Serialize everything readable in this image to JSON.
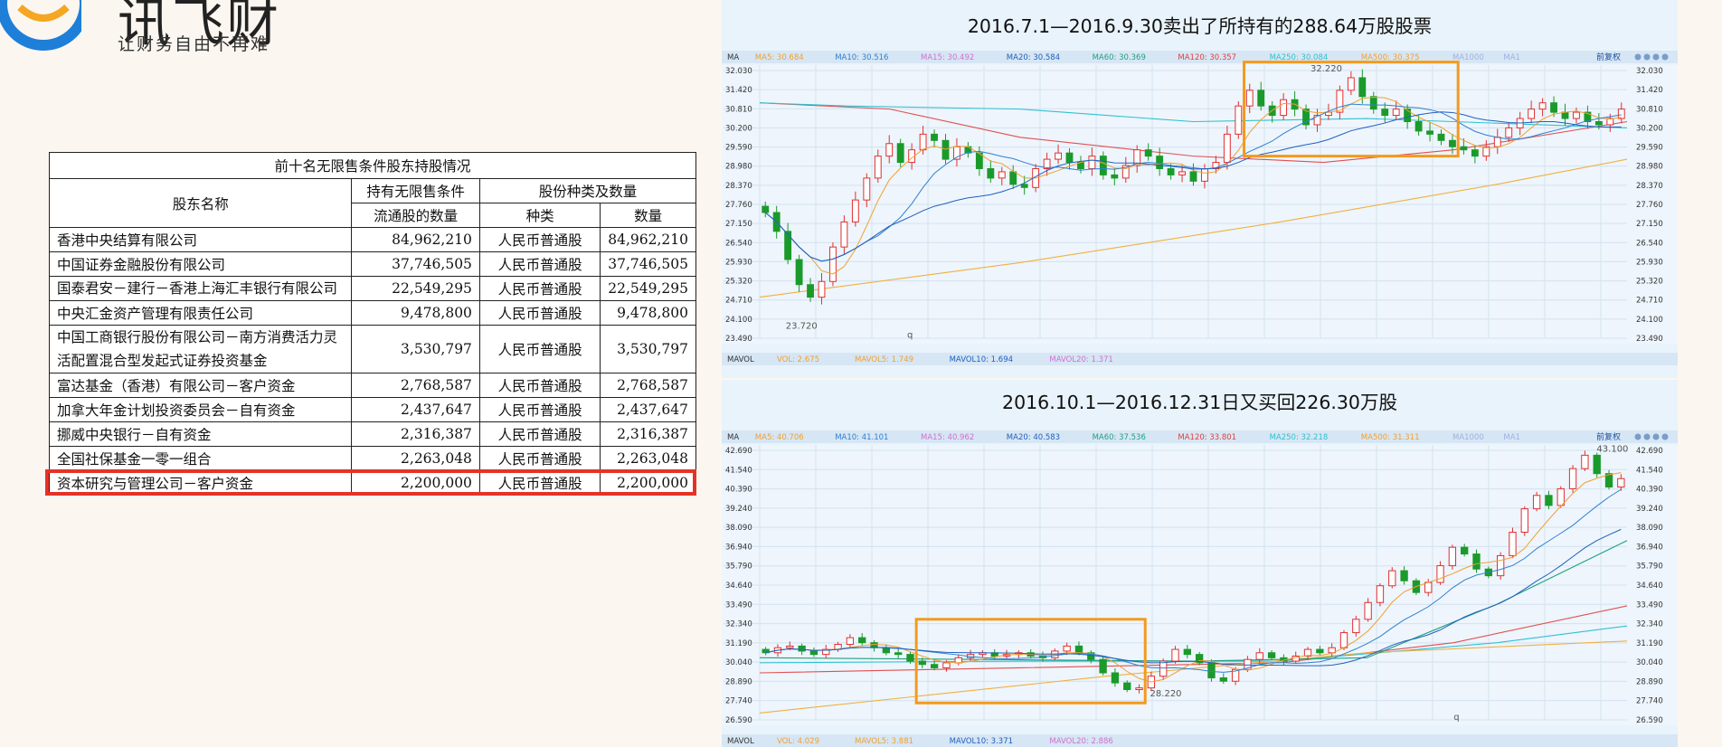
{
  "logo": {
    "text": "讯飞财",
    "slogan": "让财务自由不再难"
  },
  "table": {
    "caption": "前十名无限售条件股东持股情况",
    "col_name": "股东名称",
    "col_holdings": "持有无限售条件",
    "col_holdings2": "流通股的数量",
    "col_share": "股份种类及数量",
    "col_type": "种类",
    "col_qty": "数量",
    "rows": [
      {
        "name": "香港中央结算有限公司",
        "amount": "84,962,210",
        "type": "人民币普通股",
        "qty": "84,962,210"
      },
      {
        "name": "中国证券金融股份有限公司",
        "amount": "37,746,505",
        "type": "人民币普通股",
        "qty": "37,746,505"
      },
      {
        "name": "国泰君安－建行－香港上海汇丰银行有限公司",
        "amount": "22,549,295",
        "type": "人民币普通股",
        "qty": "22,549,295"
      },
      {
        "name": "中央汇金资产管理有限责任公司",
        "amount": "9,478,800",
        "type": "人民币普通股",
        "qty": "9,478,800"
      },
      {
        "name": "中国工商银行股份有限公司－南方消费活力灵活配置混合型发起式证券投资基金",
        "amount": "3,530,797",
        "type": "人民币普通股",
        "qty": "3,530,797"
      },
      {
        "name": "富达基金（香港）有限公司－客户资金",
        "amount": "2,768,587",
        "type": "人民币普通股",
        "qty": "2,768,587"
      },
      {
        "name": "加拿大年金计划投资委员会－自有资金",
        "amount": "2,437,647",
        "type": "人民币普通股",
        "qty": "2,437,647"
      },
      {
        "name": "挪威中央银行－自有资金",
        "amount": "2,316,387",
        "type": "人民币普通股",
        "qty": "2,316,387"
      },
      {
        "name": "全国社保基金一零一组合",
        "amount": "2,263,048",
        "type": "人民币普通股",
        "qty": "2,263,048"
      },
      {
        "name": "资本研究与管理公司－客户资金",
        "amount": "2,200,000",
        "type": "人民币普通股",
        "qty": "2,200,000"
      }
    ]
  },
  "colors": {
    "up": "#e03030",
    "down": "#1a9a2a",
    "highlight": "#e53227",
    "box": "#f39a1e"
  },
  "chart_data": [
    {
      "type": "candlestick",
      "title": "2016.7.1—2016.9.30卖出了所持有的288.64万股股票",
      "legend_ma": [
        {
          "label": "MA",
          "color": "#333333"
        },
        {
          "label": "MA5: 30.684",
          "color": "#f0a030"
        },
        {
          "label": "MA10: 30.516",
          "color": "#3080d0"
        },
        {
          "label": "MA15: 30.492",
          "color": "#d070d0"
        },
        {
          "label": "MA20: 30.584",
          "color": "#2060c0"
        },
        {
          "label": "MA60: 30.369",
          "color": "#20a080"
        },
        {
          "label": "MA120: 30.357",
          "color": "#e04040"
        },
        {
          "label": "MA250: 30.084",
          "color": "#30c0d0"
        },
        {
          "label": "MA500: 30.375",
          "color": "#f0a030"
        },
        {
          "label": "MA1000",
          "color": "#a0b0e0"
        },
        {
          "label": "MA1",
          "color": "#a0b0e0"
        }
      ],
      "button_label": "前复权",
      "y_ticks": [
        "32.030",
        "31.420",
        "30.810",
        "30.200",
        "29.590",
        "28.980",
        "28.370",
        "27.760",
        "27.150",
        "26.540",
        "25.930",
        "25.320",
        "24.710",
        "24.100",
        "23.490"
      ],
      "ylim": [
        23.49,
        32.03
      ],
      "annotations": [
        "32.220",
        "23.720",
        "q"
      ],
      "vol_legend": [
        {
          "label": "MAVOL",
          "color": "#333333"
        },
        {
          "label": "VOL: 2.675",
          "color": "#f0a030"
        },
        {
          "label": "MAVOL5: 1.749",
          "color": "#f0a030"
        },
        {
          "label": "MAVOL10: 1.694",
          "color": "#2060c0"
        },
        {
          "label": "MAVOL20: 1.371",
          "color": "#d070d0"
        }
      ],
      "close": [
        27.5,
        26.9,
        26.0,
        25.2,
        24.8,
        25.3,
        26.4,
        27.2,
        27.9,
        28.6,
        29.3,
        29.7,
        29.1,
        29.5,
        30.0,
        29.8,
        29.2,
        29.6,
        29.4,
        28.9,
        28.6,
        28.8,
        28.4,
        28.3,
        28.9,
        29.2,
        29.4,
        29.1,
        28.9,
        29.3,
        28.7,
        28.6,
        29.0,
        29.5,
        29.3,
        28.9,
        28.7,
        28.8,
        28.5,
        28.9,
        29.1,
        30.0,
        30.9,
        31.4,
        30.9,
        30.6,
        31.1,
        30.8,
        30.3,
        30.6,
        30.7,
        31.4,
        31.8,
        31.2,
        30.8,
        30.6,
        30.8,
        30.4,
        30.1,
        30.0,
        29.8,
        29.6,
        29.5,
        29.3,
        29.6,
        29.9,
        30.2,
        30.5,
        30.8,
        31.0,
        30.7,
        30.5,
        30.7,
        30.4,
        30.3,
        30.5,
        30.8
      ]
    },
    {
      "type": "candlestick",
      "title": "2016.10.1—2016.12.31日又买回226.30万股",
      "legend_ma": [
        {
          "label": "MA",
          "color": "#333333"
        },
        {
          "label": "MA5: 40.706",
          "color": "#f0a030"
        },
        {
          "label": "MA10: 41.101",
          "color": "#3080d0"
        },
        {
          "label": "MA15: 40.962",
          "color": "#d070d0"
        },
        {
          "label": "MA20: 40.583",
          "color": "#2060c0"
        },
        {
          "label": "MA60: 37.536",
          "color": "#20a080"
        },
        {
          "label": "MA120: 33.801",
          "color": "#e04040"
        },
        {
          "label": "MA250: 32.218",
          "color": "#30c0d0"
        },
        {
          "label": "MA500: 31.311",
          "color": "#f0a030"
        },
        {
          "label": "MA1000",
          "color": "#a0b0e0"
        },
        {
          "label": "MA1",
          "color": "#a0b0e0"
        }
      ],
      "button_label": "前复权",
      "y_ticks": [
        "42.690",
        "41.540",
        "40.390",
        "39.240",
        "38.090",
        "36.940",
        "35.790",
        "34.640",
        "33.490",
        "32.340",
        "31.190",
        "30.040",
        "28.890",
        "27.740",
        "26.590"
      ],
      "ylim": [
        26.59,
        42.69
      ],
      "annotations": [
        "43.100",
        "28.220",
        "q"
      ],
      "vol_legend": [
        {
          "label": "MAVOL",
          "color": "#333333"
        },
        {
          "label": "VOL: 4.029",
          "color": "#f0a030"
        },
        {
          "label": "MAVOL5: 3.881",
          "color": "#f0a030"
        },
        {
          "label": "MAVOL10: 3.371",
          "color": "#2060c0"
        },
        {
          "label": "MAVOL20: 2.886",
          "color": "#d070d0"
        }
      ],
      "close": [
        30.6,
        30.9,
        31.0,
        30.7,
        30.5,
        30.8,
        31.1,
        31.5,
        31.2,
        30.9,
        30.6,
        30.5,
        30.1,
        29.9,
        29.7,
        30.0,
        30.3,
        30.5,
        30.6,
        30.4,
        30.5,
        30.6,
        30.4,
        30.3,
        30.7,
        31.0,
        30.6,
        30.2,
        29.4,
        28.8,
        28.4,
        28.5,
        29.2,
        30.1,
        30.8,
        30.5,
        30.0,
        29.1,
        28.9,
        29.6,
        30.2,
        30.6,
        30.3,
        30.1,
        30.4,
        30.8,
        30.6,
        30.9,
        31.8,
        32.6,
        33.6,
        34.6,
        35.5,
        34.9,
        34.2,
        34.8,
        35.8,
        36.9,
        36.5,
        35.6,
        35.2,
        36.4,
        37.8,
        39.2,
        40.0,
        39.4,
        40.4,
        41.6,
        42.4,
        41.3,
        40.5,
        41.0
      ]
    }
  ]
}
